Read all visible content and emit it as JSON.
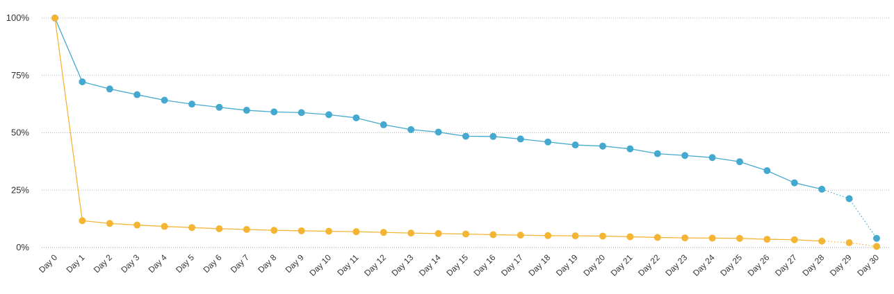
{
  "chart_data": {
    "type": "line",
    "title": "",
    "xlabel": "",
    "ylabel": "",
    "ylim": [
      0,
      100
    ],
    "yticks": [
      "0%",
      "25%",
      "50%",
      "75%",
      "100%"
    ],
    "grid": true,
    "legend": "none",
    "categories": [
      "Day 0",
      "Day 1",
      "Day 2",
      "Day 3",
      "Day 4",
      "Day 5",
      "Day 6",
      "Day 7",
      "Day 8",
      "Day 9",
      "Day 10",
      "Day 11",
      "Day 12",
      "Day 13",
      "Day 14",
      "Day 15",
      "Day 16",
      "Day 17",
      "Day 18",
      "Day 19",
      "Day 20",
      "Day 21",
      "Day 22",
      "Day 23",
      "Day 24",
      "Day 25",
      "Day 26",
      "Day 27",
      "Day 28",
      "Day 29",
      "Day 30"
    ],
    "series": [
      {
        "color": "#45a9cf",
        "values": [
          100,
          72.2,
          69.1,
          66.6,
          64.2,
          62.5,
          61.1,
          59.8,
          59.1,
          58.8,
          57.9,
          56.5,
          53.5,
          51.4,
          50.3,
          48.5,
          48.4,
          47.3,
          46.0,
          44.7,
          44.2,
          43.0,
          40.9,
          40.1,
          39.2,
          37.4,
          33.5,
          28.2,
          25.4,
          21.3,
          4.0
        ],
        "dotted_from": 28
      },
      {
        "color": "#f5b534",
        "values": [
          100,
          11.7,
          10.5,
          9.8,
          9.2,
          8.7,
          8.2,
          7.9,
          7.5,
          7.3,
          7.1,
          6.9,
          6.6,
          6.3,
          6.1,
          5.9,
          5.6,
          5.4,
          5.2,
          5.1,
          5.0,
          4.7,
          4.4,
          4.2,
          4.1,
          4.0,
          3.6,
          3.4,
          2.8,
          2.1,
          0.5
        ],
        "dotted_from": 28
      }
    ]
  }
}
